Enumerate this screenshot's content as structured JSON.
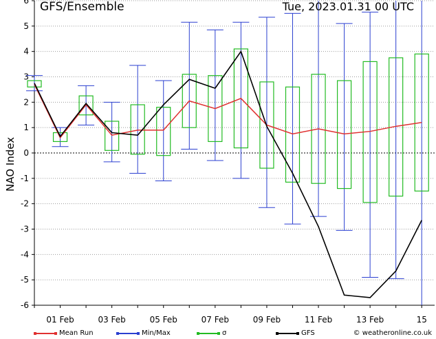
{
  "header": {
    "title": "GFS/Ensemble",
    "date": "Tue, 2023.01.31   00 UTC"
  },
  "legend": {
    "mean": "Mean Run",
    "minmax": "Min/Max",
    "sigma": "σ",
    "gfs": "GFS",
    "credit": "© weatheronline.co.uk"
  },
  "colors": {
    "mean": "#e03030",
    "minmax": "#2a3fd0",
    "sigma": "#22bb22",
    "gfs": "#000000"
  },
  "chart_data": {
    "type": "line",
    "ylabel": "NAO Index",
    "ylim": [
      -6,
      6
    ],
    "yticks": [
      -6,
      -5,
      -4,
      -3,
      -2,
      -1,
      0,
      1,
      2,
      3,
      4,
      5,
      6
    ],
    "xlim": [
      0,
      15.5
    ],
    "xtick_labels": [
      {
        "x": 1,
        "label": "01 Feb"
      },
      {
        "x": 3,
        "label": "03 Feb"
      },
      {
        "x": 5,
        "label": "05 Feb"
      },
      {
        "x": 7,
        "label": "07 Feb"
      },
      {
        "x": 9,
        "label": "09 Feb"
      },
      {
        "x": 11,
        "label": "11 Feb"
      },
      {
        "x": 13,
        "label": "13 Feb"
      },
      {
        "x": 15,
        "label": "15"
      }
    ],
    "x": [
      0,
      1,
      2,
      3,
      4,
      5,
      6,
      7,
      8,
      9,
      10,
      11,
      12,
      13,
      14,
      15
    ],
    "series": [
      {
        "name": "Mean Run",
        "key": "mean",
        "values": [
          2.7,
          0.6,
          1.9,
          0.7,
          0.9,
          0.9,
          2.05,
          1.75,
          2.15,
          1.1,
          0.75,
          0.95,
          0.75,
          0.85,
          1.05,
          1.2
        ]
      },
      {
        "name": "GFS",
        "key": "gfs",
        "values": [
          2.75,
          0.65,
          1.95,
          0.8,
          0.7,
          1.9,
          2.9,
          2.55,
          4.0,
          1.05,
          -0.8,
          -2.9,
          -5.6,
          -5.7,
          -4.65,
          -2.65
        ]
      },
      {
        "name": "Min/Max",
        "key": "minmax",
        "min": [
          2.45,
          0.25,
          1.1,
          -0.35,
          -0.8,
          -1.1,
          0.15,
          -0.3,
          -1.0,
          -2.15,
          -2.8,
          -2.5,
          -3.05,
          -4.9,
          -4.95,
          -6.0
        ],
        "max": [
          3.05,
          1.0,
          2.65,
          2.0,
          3.45,
          2.85,
          5.15,
          4.85,
          5.15,
          5.35,
          5.5,
          6.0,
          5.1,
          5.55,
          6.0,
          6.0
        ]
      },
      {
        "name": "σ",
        "key": "sigma",
        "low": [
          2.6,
          0.45,
          1.5,
          0.1,
          -0.05,
          -0.1,
          1.0,
          0.45,
          0.2,
          -0.6,
          -1.15,
          -1.2,
          -1.4,
          -1.95,
          -1.7,
          -1.5
        ],
        "high": [
          2.85,
          0.8,
          2.25,
          1.25,
          1.9,
          1.8,
          3.1,
          3.05,
          4.1,
          2.8,
          2.6,
          3.1,
          2.85,
          3.6,
          3.75,
          3.9
        ]
      }
    ],
    "grid": true,
    "legend_position": "bottom"
  }
}
